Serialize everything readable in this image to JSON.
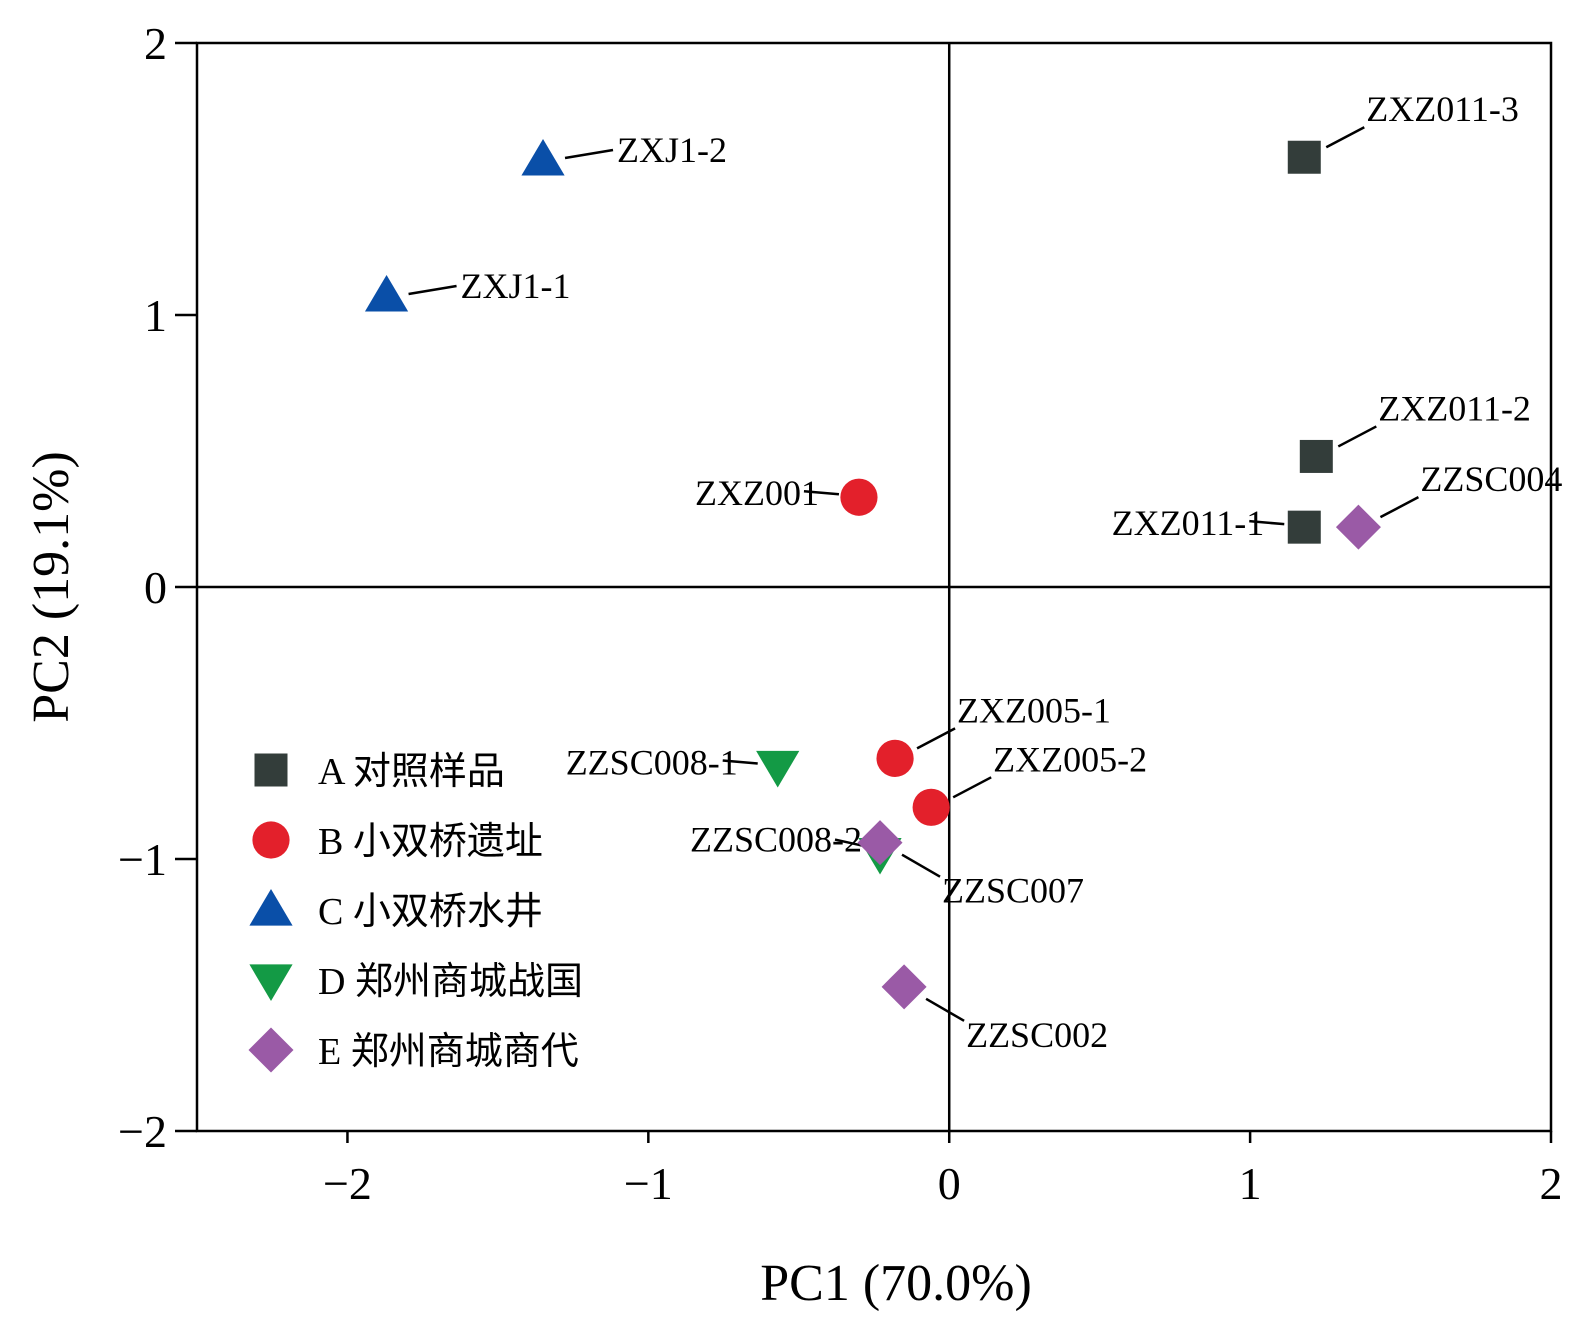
{
  "chart_data": {
    "type": "scatter",
    "xlabel": "PC1 (70.0%)",
    "ylabel": "PC2 (19.1%)",
    "xlim": [
      -2.5,
      2
    ],
    "ylim": [
      -2,
      2
    ],
    "x_ticks": [
      {
        "value": -2,
        "label": "−2"
      },
      {
        "value": -1,
        "label": "−1"
      },
      {
        "value": 0,
        "label": "0"
      },
      {
        "value": 1,
        "label": "1"
      },
      {
        "value": 2,
        "label": "2"
      }
    ],
    "y_ticks": [
      {
        "value": 2,
        "label": "2"
      },
      {
        "value": 1,
        "label": "1"
      },
      {
        "value": 0,
        "label": "0"
      },
      {
        "value": -1,
        "label": "−1"
      },
      {
        "value": -2,
        "label": "−2"
      }
    ],
    "zero_lines": true,
    "legend_position": "bottom-left",
    "series": [
      {
        "name": "A 对照样品",
        "marker": "square",
        "color": "#333d3a",
        "points": [
          {
            "x": 1.18,
            "y": 1.58,
            "label": "ZXZ011-3",
            "label_pos": "upper-right"
          },
          {
            "x": 1.22,
            "y": 0.48,
            "label": "ZXZ011-2",
            "label_pos": "upper-right"
          },
          {
            "x": 1.18,
            "y": 0.22,
            "label": "ZXZ011-1",
            "label_pos": "left"
          }
        ]
      },
      {
        "name": "B 小双桥遗址",
        "marker": "circle",
        "color": "#e3202b",
        "points": [
          {
            "x": -0.3,
            "y": 0.33,
            "label": "ZXZ001",
            "label_pos": "left"
          },
          {
            "x": -0.18,
            "y": -0.63,
            "label": "ZXZ005-1",
            "label_pos": "upper-right"
          },
          {
            "x": -0.06,
            "y": -0.81,
            "label": "ZXZ005-2",
            "label_pos": "upper-right"
          }
        ]
      },
      {
        "name": "C 小双桥水井",
        "marker": "triangle-up",
        "color": "#0a4fa8",
        "points": [
          {
            "x": -1.87,
            "y": 1.07,
            "label": "ZXJ1-1",
            "label_pos": "right"
          },
          {
            "x": -1.35,
            "y": 1.57,
            "label": "ZXJ1-2",
            "label_pos": "right"
          }
        ]
      },
      {
        "name": "D 郑州商城战国",
        "marker": "triangle-down",
        "color": "#139a45",
        "points": [
          {
            "x": -0.57,
            "y": -0.66,
            "label": "ZZSC008-1",
            "label_pos": "left"
          },
          {
            "x": -0.23,
            "y": -0.98,
            "label": "ZZSC008-2",
            "label_pos": "upper-left"
          }
        ]
      },
      {
        "name": "E 郑州商城商代",
        "marker": "diamond",
        "color": "#9a5aa6",
        "points": [
          {
            "x": 1.36,
            "y": 0.22,
            "label": "ZZSC004",
            "label_pos": "upper-right"
          },
          {
            "x": -0.23,
            "y": -0.94,
            "label": "ZZSC007",
            "label_pos": "lower-right"
          },
          {
            "x": -0.15,
            "y": -1.47,
            "label": "ZZSC002",
            "label_pos": "lower-right"
          }
        ]
      }
    ]
  }
}
